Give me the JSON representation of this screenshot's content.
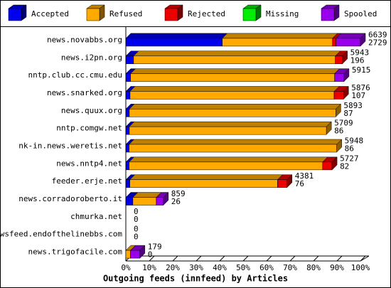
{
  "chart_data": {
    "type": "bar",
    "orientation": "horizontal",
    "stacked": true,
    "xlabel": "Outgoing feeds (innfeed) by Articles",
    "categories": [
      "news.novabbs.org",
      "news.i2pn.org",
      "nntp.club.cc.cmu.edu",
      "news.snarked.org",
      "news.quux.org",
      "nntp.comgw.net",
      "nk-in.news.weretis.net",
      "news.nntp4.net",
      "feeder.erje.net",
      "news.corradoroberto.it",
      "chmurka.net",
      "newsfeed.endofthelinebbs.com",
      "news.trigofacile.com"
    ],
    "series": [
      {
        "name": "Accepted",
        "color": "#0000ee",
        "values": [
          41.1,
          3.3,
          2,
          1.8,
          1.5,
          1.5,
          1.4,
          1.4,
          1.7,
          3,
          0,
          0,
          0
        ]
      },
      {
        "name": "Refused",
        "color": "#ffaa00",
        "values": [
          47,
          86,
          87,
          87,
          88,
          84,
          88.5,
          82.5,
          63,
          10,
          0,
          0,
          2
        ]
      },
      {
        "name": "Rejected",
        "color": "#ee0000",
        "values": [
          1.5,
          3,
          0,
          4,
          0,
          0,
          0,
          4,
          4,
          0,
          0,
          0,
          0
        ]
      },
      {
        "name": "Missing",
        "color": "#00ee00",
        "values": [
          0,
          0,
          0,
          0,
          0,
          0,
          0,
          0,
          0,
          0,
          0,
          0,
          0
        ]
      },
      {
        "name": "Spooled",
        "color": "#9900ee",
        "values": [
          10.4,
          0,
          4,
          0,
          0,
          0,
          0,
          0,
          0,
          3,
          0,
          0,
          4
        ]
      }
    ],
    "side_labels": [
      [
        "6639",
        "2729"
      ],
      [
        "5943",
        "196"
      ],
      [
        "5915"
      ],
      [
        "5876",
        "107"
      ],
      [
        "5893",
        "87"
      ],
      [
        "5709",
        "86"
      ],
      [
        "5948",
        "86"
      ],
      [
        "5727",
        "82"
      ],
      [
        "4381",
        "76"
      ],
      [
        "859",
        "26"
      ],
      [
        "0",
        "0"
      ],
      [
        "0",
        "0"
      ],
      [
        "179",
        "0"
      ]
    ],
    "xlim": [
      0,
      100
    ],
    "xticks": [
      {
        "value": 0,
        "label": "0%"
      },
      {
        "value": 10,
        "label": "10%"
      },
      {
        "value": 20,
        "label": "20%"
      },
      {
        "value": 30,
        "label": "30%"
      },
      {
        "value": 40,
        "label": "40%"
      },
      {
        "value": 50,
        "label": "50%"
      },
      {
        "value": 60,
        "label": "60%"
      },
      {
        "value": 70,
        "label": "70%"
      },
      {
        "value": 80,
        "label": "80%"
      },
      {
        "value": 90,
        "label": "90%"
      },
      {
        "value": 100,
        "label": "100%"
      }
    ],
    "legend_position": "top"
  }
}
